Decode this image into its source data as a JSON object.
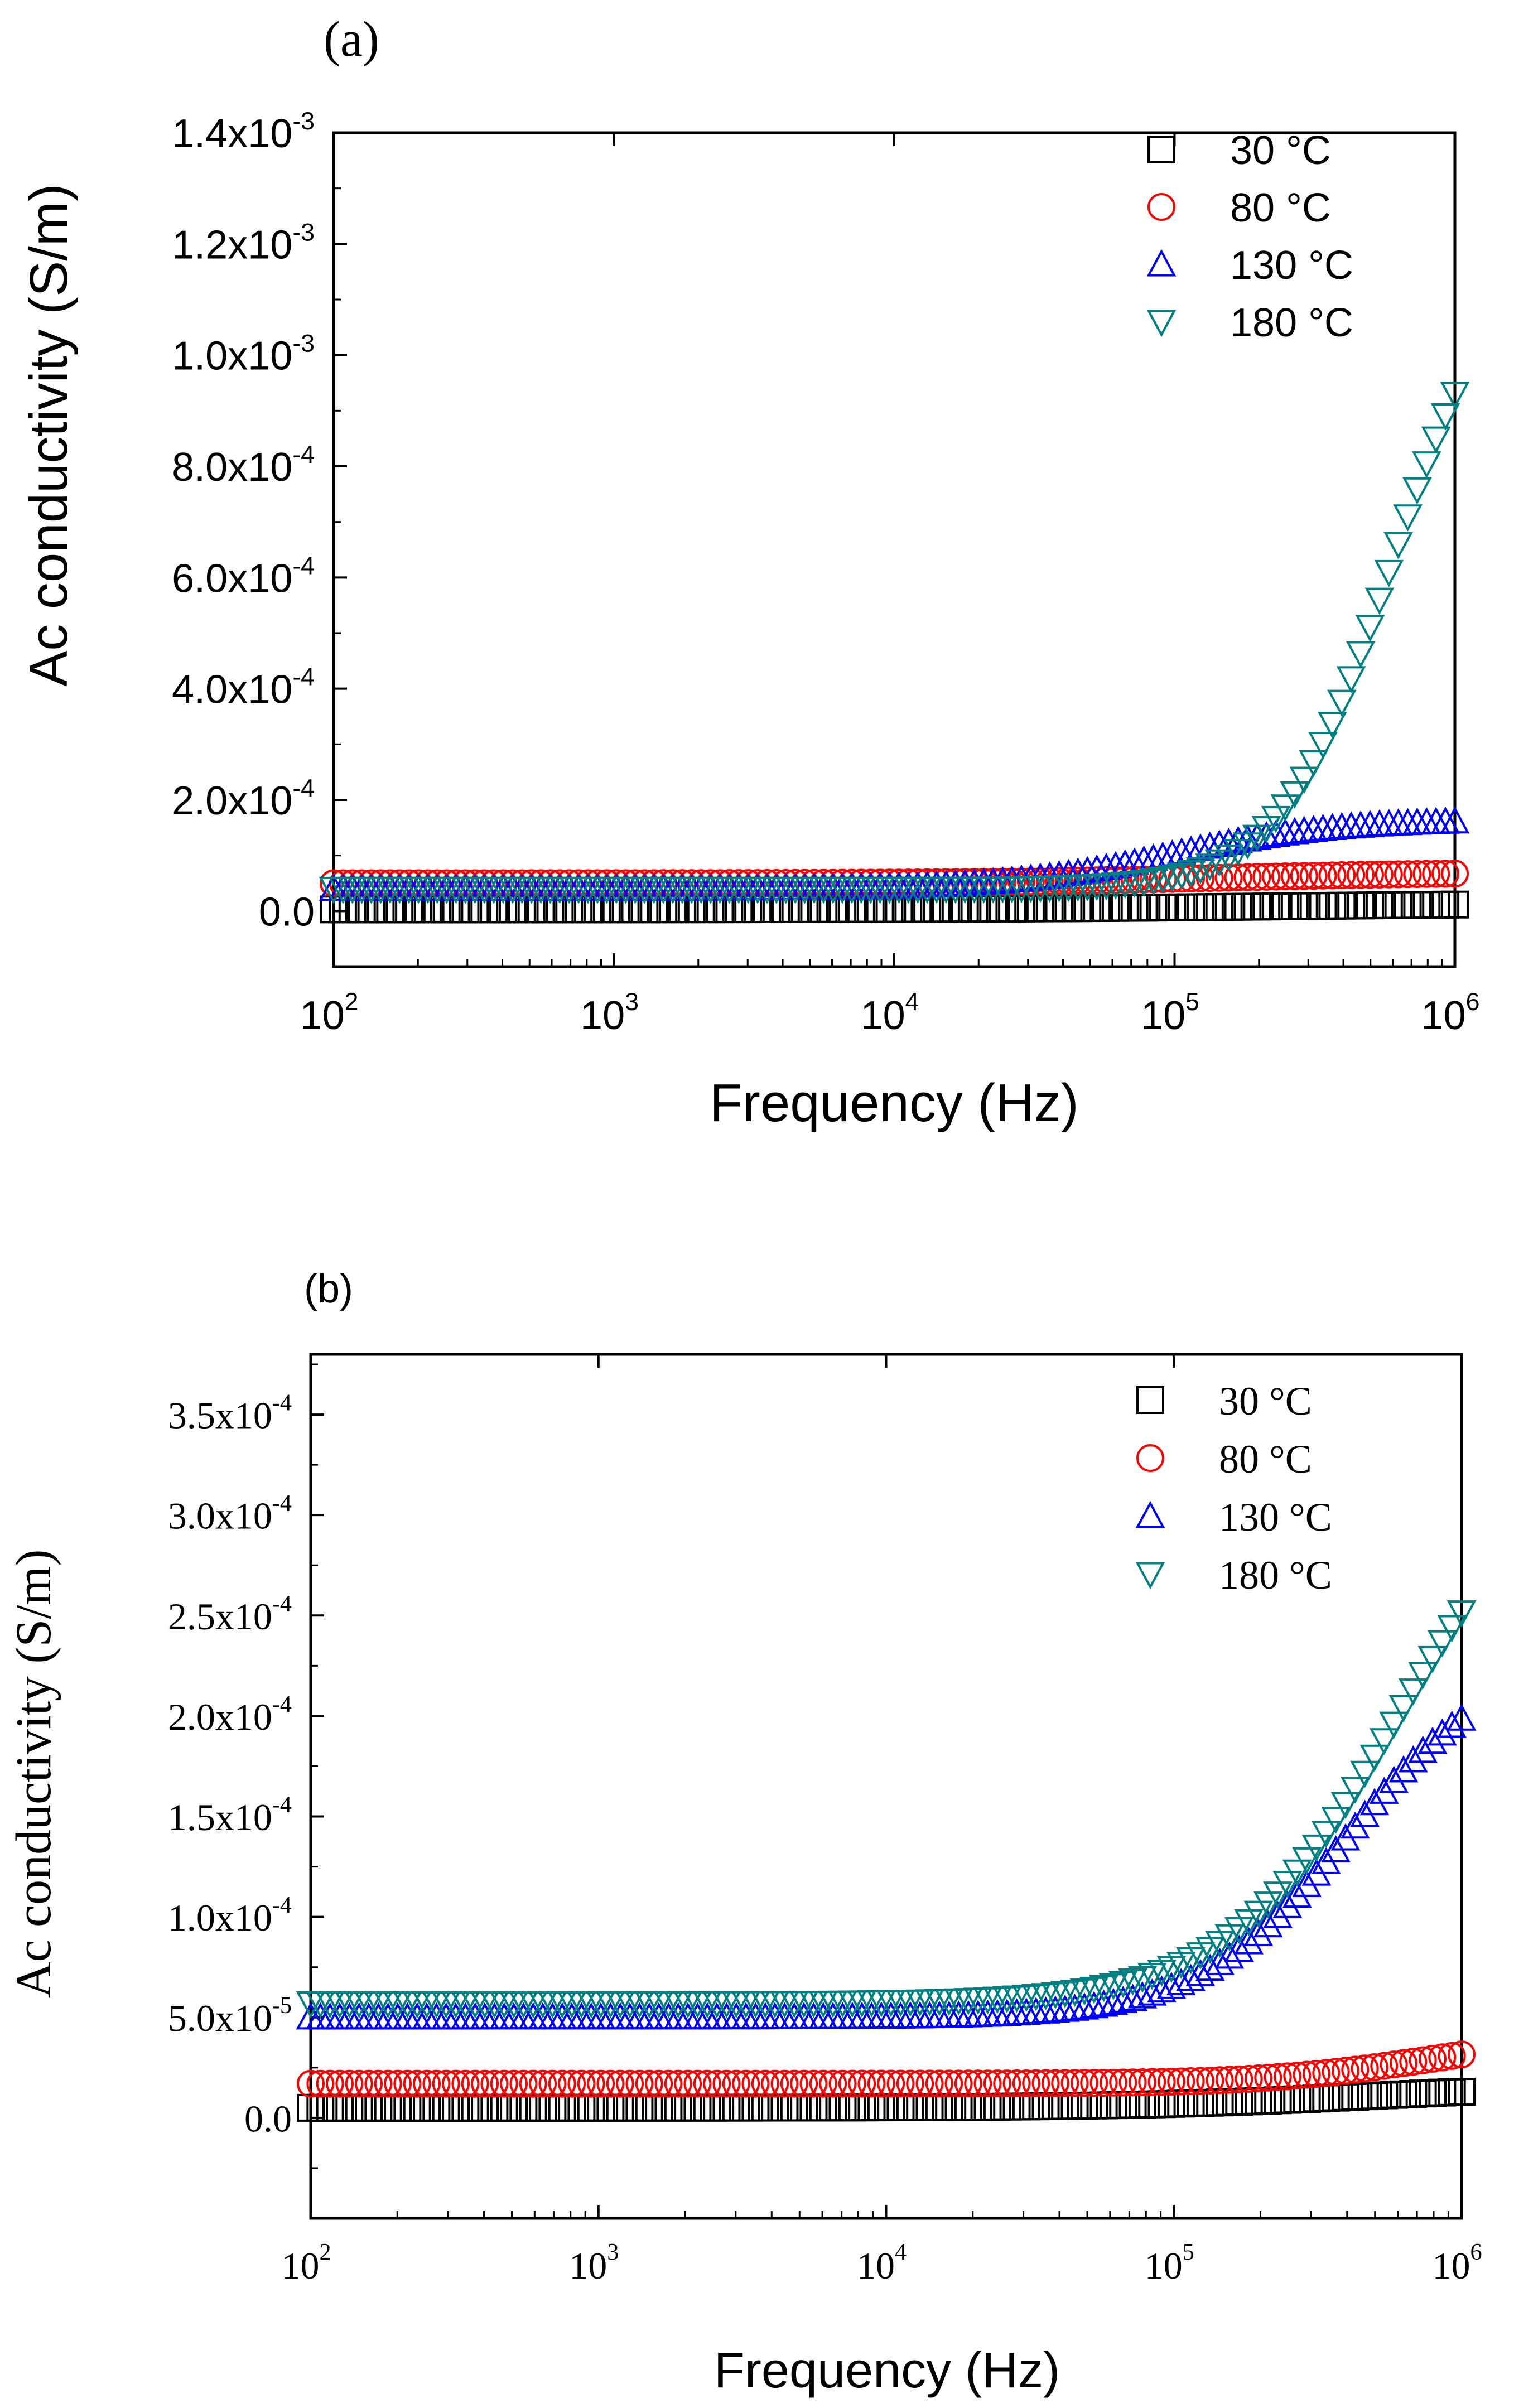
{
  "chart_data": [
    {
      "type": "scatter",
      "panel_label": "(a)",
      "xlabel": "Frequency (Hz)",
      "ylabel": "Ac conductivity (S/m)",
      "x_scale": "log",
      "xlim": [
        100,
        1000000
      ],
      "ylim": [
        -0.0001,
        0.0014
      ],
      "x_ticks": [
        {
          "base": "10",
          "exp": "2"
        },
        {
          "base": "10",
          "exp": "3"
        },
        {
          "base": "10",
          "exp": "4"
        },
        {
          "base": "10",
          "exp": "5"
        },
        {
          "base": "10",
          "exp": "6"
        }
      ],
      "y_ticks": [
        {
          "value": 0,
          "mantissa": "0.0",
          "exp": ""
        },
        {
          "value": 0.0002,
          "mantissa": "2.0x10",
          "exp": "-4"
        },
        {
          "value": 0.0004,
          "mantissa": "4.0x10",
          "exp": "-4"
        },
        {
          "value": 0.0006,
          "mantissa": "6.0x10",
          "exp": "-4"
        },
        {
          "value": 0.0008,
          "mantissa": "8.0x10",
          "exp": "-4"
        },
        {
          "value": 0.001,
          "mantissa": "1.0x10",
          "exp": "-3"
        },
        {
          "value": 0.0012,
          "mantissa": "1.2x10",
          "exp": "-3"
        },
        {
          "value": 0.0014,
          "mantissa": "1.4x10",
          "exp": "-3"
        }
      ],
      "legend_position": "top-right",
      "series": [
        {
          "name": "30 °C",
          "marker": "square",
          "color": "#000000",
          "base": 3e-06,
          "amp": 1.2e-05,
          "f0": 300000,
          "n": 0.8
        },
        {
          "name": "80 °C",
          "marker": "circle",
          "color": "#ff0000",
          "base": 5e-05,
          "amp": 2e-05,
          "f0": 150000,
          "n": 1.0
        },
        {
          "name": "130 °C",
          "marker": "triangle-up",
          "color": "#0000ff",
          "base": 4e-05,
          "amp": 0.000125,
          "f0": 100000,
          "n": 1.5
        },
        {
          "name": "180 °C",
          "marker": "triangle-down",
          "color": "#008080",
          "base": 4e-05,
          "amp": 0.00118,
          "f0": 600000,
          "n": 2.2
        }
      ]
    },
    {
      "type": "scatter",
      "panel_label": "(b)",
      "xlabel": "Frequency (Hz)",
      "ylabel": "Ac conductivity (S/m)",
      "x_scale": "log",
      "xlim": [
        100,
        1000000
      ],
      "ylim": [
        -5e-05,
        0.00038
      ],
      "x_ticks": [
        {
          "base": "10",
          "exp": "2"
        },
        {
          "base": "10",
          "exp": "3"
        },
        {
          "base": "10",
          "exp": "4"
        },
        {
          "base": "10",
          "exp": "5"
        },
        {
          "base": "10",
          "exp": "6"
        }
      ],
      "y_ticks": [
        {
          "value": 0,
          "mantissa": "0.0",
          "exp": ""
        },
        {
          "value": 5e-05,
          "mantissa": "5.0x10",
          "exp": "-5"
        },
        {
          "value": 0.0001,
          "mantissa": "1.0x10",
          "exp": "-4"
        },
        {
          "value": 0.00015,
          "mantissa": "1.5x10",
          "exp": "-4"
        },
        {
          "value": 0.0002,
          "mantissa": "2.0x10",
          "exp": "-4"
        },
        {
          "value": 0.00025,
          "mantissa": "2.5x10",
          "exp": "-4"
        },
        {
          "value": 0.0003,
          "mantissa": "3.0x10",
          "exp": "-4"
        },
        {
          "value": 0.00035,
          "mantissa": "3.5x10",
          "exp": "-4"
        }
      ],
      "legend_position": "top-right",
      "series": [
        {
          "name": "30 °C",
          "marker": "square",
          "color": "#000000",
          "base": 5e-06,
          "amp": 1.2e-05,
          "f0": 500000,
          "n": 1.0
        },
        {
          "name": "80 °C",
          "marker": "circle",
          "color": "#ff0000",
          "base": 1.7e-05,
          "amp": 2.5e-05,
          "f0": 800000,
          "n": 1.5
        },
        {
          "name": "130 °C",
          "marker": "triangle-up",
          "color": "#0000ff",
          "base": 5e-05,
          "amp": 0.00018,
          "f0": 400000,
          "n": 1.7
        },
        {
          "name": "180 °C",
          "marker": "triangle-down",
          "color": "#008080",
          "base": 5.7e-05,
          "amp": 0.000285,
          "f0": 600000,
          "n": 1.5
        }
      ]
    }
  ]
}
